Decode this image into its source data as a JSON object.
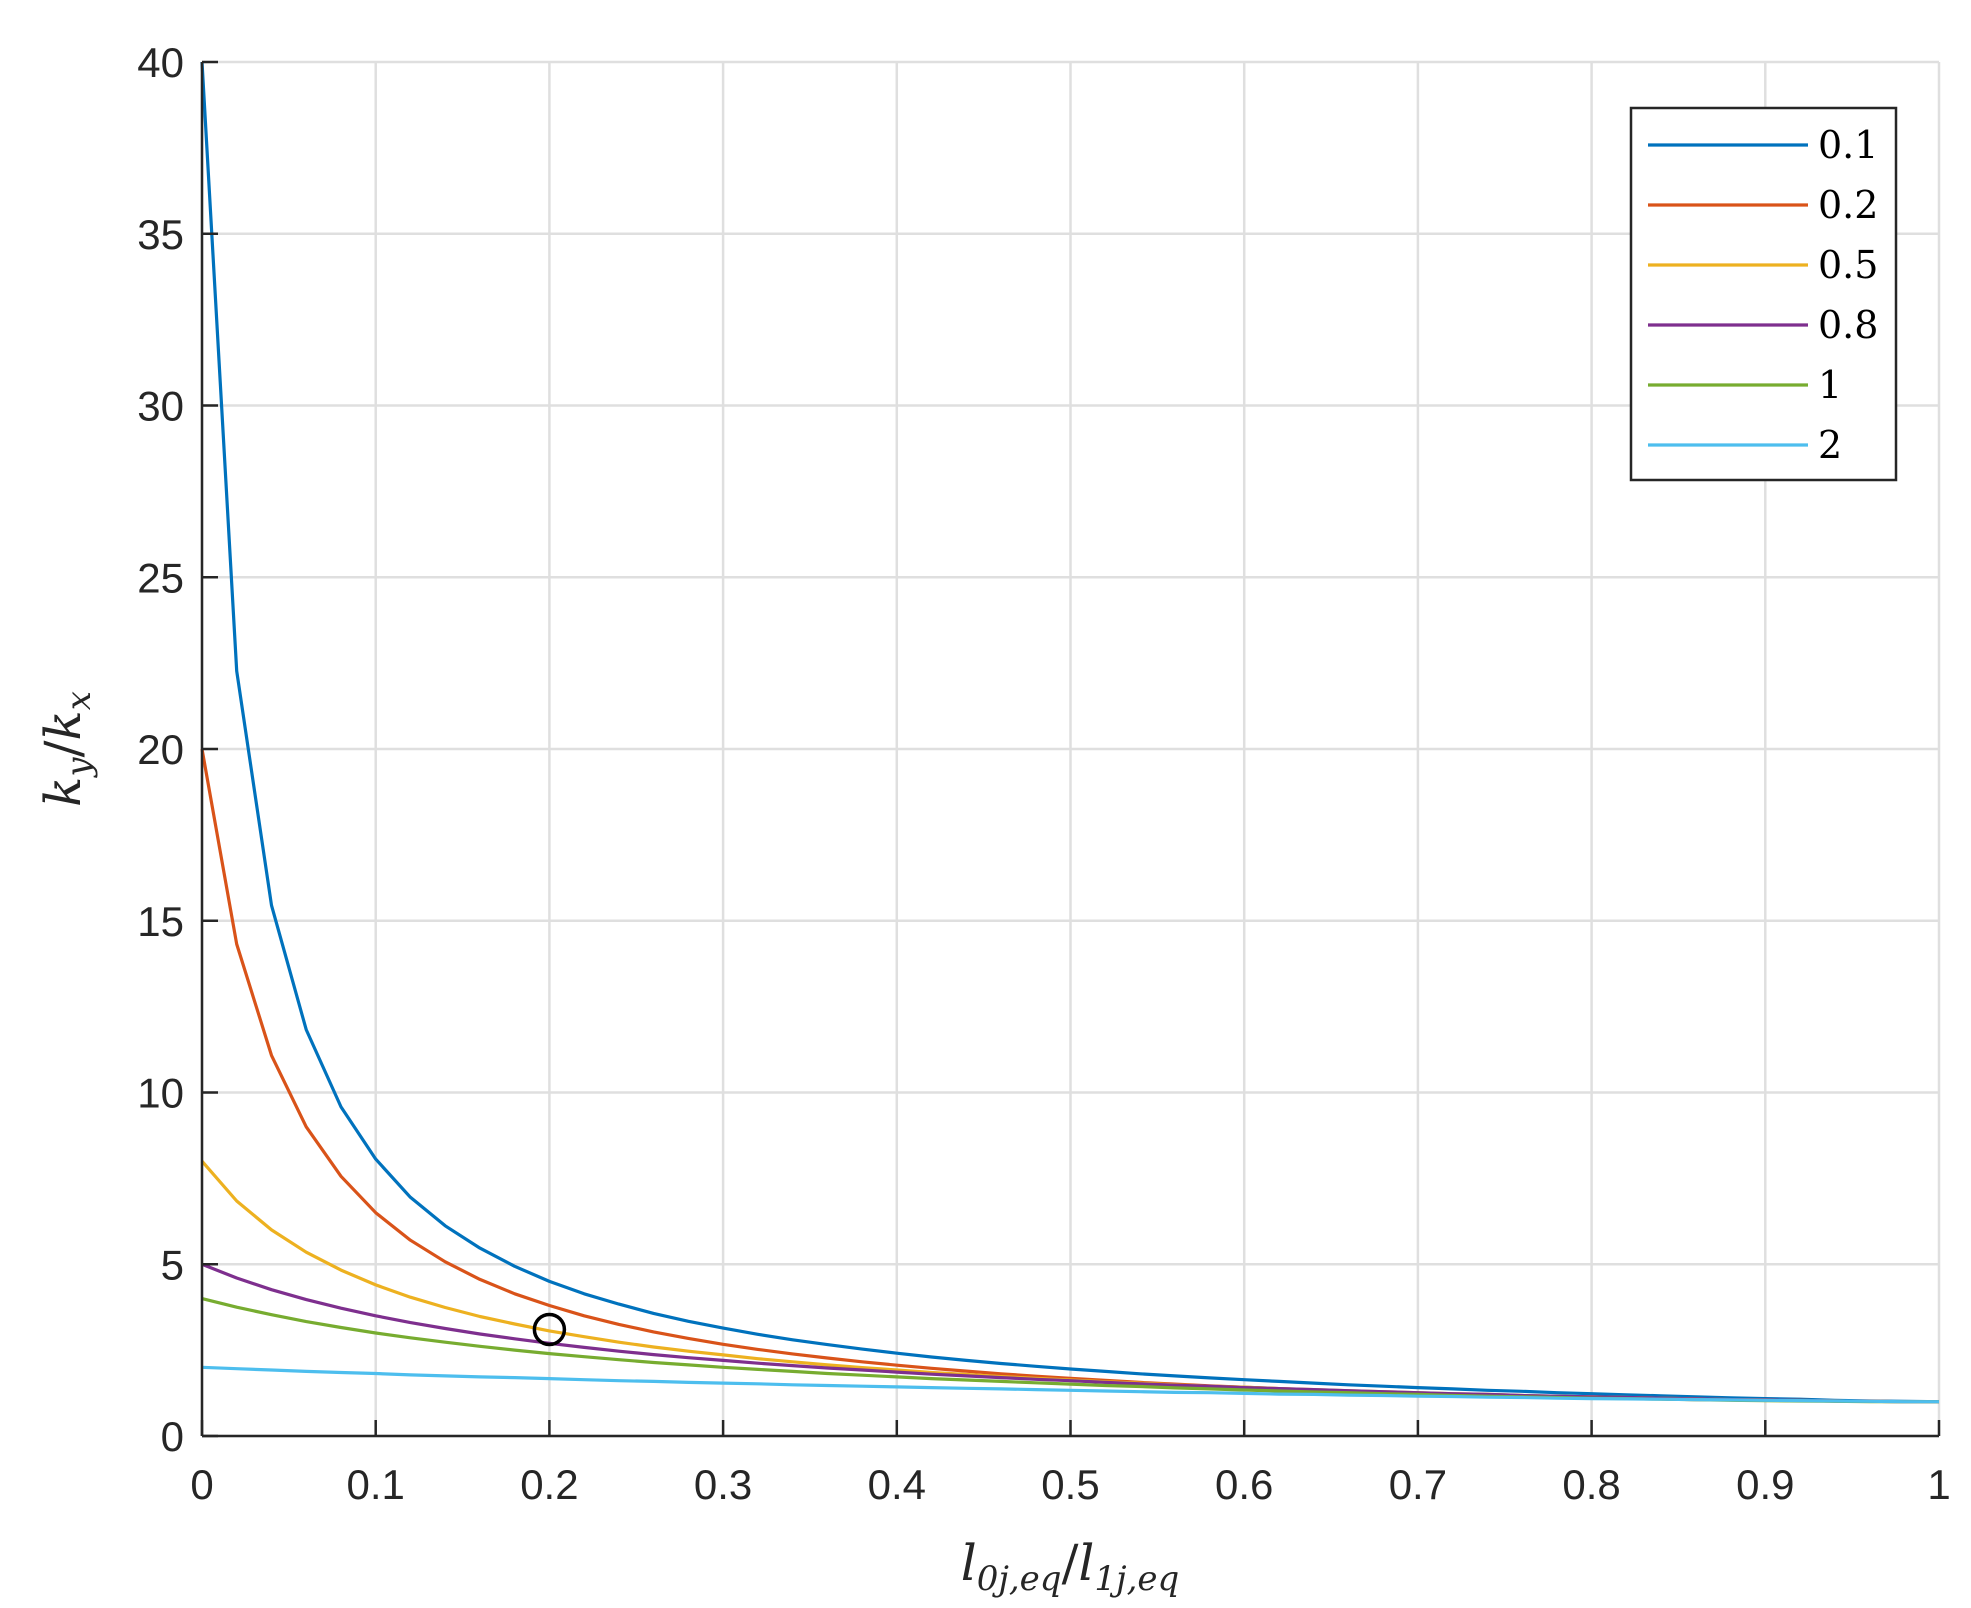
{
  "chart_data": {
    "type": "line",
    "title": "",
    "xlabel": {
      "main1": "l",
      "sub1": "0j,eq",
      "slash": "/",
      "main2": "l",
      "sub2": "1j,eq"
    },
    "ylabel": {
      "main1": "k",
      "sub1": "y",
      "slash": "/",
      "main2": "k",
      "sub2": "x"
    },
    "xlim": [
      0,
      1
    ],
    "ylim": [
      0,
      40
    ],
    "xticks": [
      0,
      0.1,
      0.2,
      0.3,
      0.4,
      0.5,
      0.6,
      0.7,
      0.8,
      0.9,
      1
    ],
    "xtick_labels": [
      "0",
      "0.1",
      "0.2",
      "0.3",
      "0.4",
      "0.5",
      "0.6",
      "0.7",
      "0.8",
      "0.9",
      "1"
    ],
    "yticks": [
      0,
      5,
      10,
      15,
      20,
      25,
      30,
      35,
      40
    ],
    "ytick_labels": [
      "0",
      "5",
      "10",
      "15",
      "20",
      "25",
      "30",
      "35",
      "40"
    ],
    "grid": true,
    "legend_position": "top-right",
    "x": [
      0,
      0.02,
      0.04,
      0.06,
      0.08,
      0.1,
      0.12,
      0.14,
      0.16,
      0.18,
      0.2,
      0.22,
      0.24,
      0.26,
      0.28,
      0.3,
      0.32,
      0.34,
      0.36,
      0.38,
      0.4,
      0.42,
      0.44,
      0.46,
      0.48,
      0.5,
      0.52,
      0.54,
      0.56,
      0.58,
      0.6,
      0.62,
      0.64,
      0.66,
      0.68,
      0.7,
      0.72,
      0.74,
      0.76,
      0.78,
      0.8,
      0.82,
      0.84,
      0.86,
      0.88,
      0.9,
      0.92,
      0.94,
      0.96,
      0.98,
      1
    ],
    "series": [
      {
        "name": "0.1",
        "color": "#0072BD",
        "values": [
          40.0,
          22.27,
          15.45,
          11.83,
          9.58,
          8.06,
          6.95,
          6.12,
          5.47,
          4.94,
          4.5,
          4.14,
          3.84,
          3.57,
          3.34,
          3.14,
          2.96,
          2.8,
          2.66,
          2.53,
          2.41,
          2.3,
          2.2,
          2.11,
          2.03,
          1.95,
          1.88,
          1.81,
          1.75,
          1.69,
          1.64,
          1.59,
          1.54,
          1.49,
          1.45,
          1.41,
          1.37,
          1.33,
          1.3,
          1.26,
          1.23,
          1.2,
          1.17,
          1.14,
          1.11,
          1.09,
          1.07,
          1.04,
          1.02,
          1.01,
          1.0
        ]
      },
      {
        "name": "0.2",
        "color": "#D95319",
        "values": [
          20.0,
          14.32,
          11.08,
          9.0,
          7.56,
          6.5,
          5.7,
          5.07,
          4.56,
          4.14,
          3.8,
          3.5,
          3.25,
          3.03,
          2.84,
          2.67,
          2.52,
          2.39,
          2.27,
          2.16,
          2.06,
          1.97,
          1.89,
          1.81,
          1.74,
          1.68,
          1.62,
          1.56,
          1.51,
          1.46,
          1.42,
          1.38,
          1.34,
          1.31,
          1.27,
          1.24,
          1.21,
          1.18,
          1.16,
          1.14,
          1.12,
          1.1,
          1.08,
          1.06,
          1.05,
          1.04,
          1.03,
          1.02,
          1.01,
          1.0,
          1.0
        ]
      },
      {
        "name": "0.5",
        "color": "#EDB120",
        "values": [
          8.0,
          6.84,
          6.0,
          5.35,
          4.83,
          4.4,
          4.04,
          3.74,
          3.48,
          3.26,
          3.06,
          2.89,
          2.73,
          2.59,
          2.47,
          2.36,
          2.25,
          2.16,
          2.07,
          1.99,
          1.92,
          1.85,
          1.79,
          1.73,
          1.68,
          1.63,
          1.58,
          1.54,
          1.49,
          1.45,
          1.42,
          1.38,
          1.35,
          1.32,
          1.29,
          1.26,
          1.23,
          1.21,
          1.18,
          1.16,
          1.14,
          1.12,
          1.1,
          1.08,
          1.06,
          1.05,
          1.04,
          1.02,
          1.01,
          1.0,
          1.0
        ]
      },
      {
        "name": "0.8",
        "color": "#7E2F8E",
        "values": [
          5.0,
          4.6,
          4.26,
          3.97,
          3.72,
          3.5,
          3.3,
          3.13,
          2.97,
          2.83,
          2.7,
          2.58,
          2.47,
          2.37,
          2.28,
          2.2,
          2.12,
          2.05,
          1.98,
          1.92,
          1.86,
          1.8,
          1.75,
          1.7,
          1.65,
          1.61,
          1.56,
          1.52,
          1.48,
          1.45,
          1.41,
          1.38,
          1.35,
          1.32,
          1.29,
          1.26,
          1.23,
          1.21,
          1.18,
          1.16,
          1.14,
          1.12,
          1.1,
          1.08,
          1.06,
          1.05,
          1.04,
          1.02,
          1.01,
          1.0,
          1.0
        ]
      },
      {
        "name": "1",
        "color": "#77AC30",
        "values": [
          4.0,
          3.75,
          3.53,
          3.33,
          3.16,
          3.0,
          2.86,
          2.73,
          2.61,
          2.5,
          2.4,
          2.31,
          2.22,
          2.14,
          2.07,
          2.0,
          1.94,
          1.88,
          1.82,
          1.77,
          1.72,
          1.67,
          1.63,
          1.59,
          1.55,
          1.51,
          1.47,
          1.44,
          1.4,
          1.37,
          1.34,
          1.31,
          1.28,
          1.26,
          1.23,
          1.21,
          1.18,
          1.16,
          1.14,
          1.12,
          1.1,
          1.09,
          1.07,
          1.06,
          1.04,
          1.03,
          1.02,
          1.01,
          1.0,
          1.0,
          1.0
        ]
      },
      {
        "name": "2",
        "color": "#4DBEEE",
        "values": [
          2.0,
          1.96,
          1.92,
          1.88,
          1.85,
          1.82,
          1.78,
          1.75,
          1.72,
          1.7,
          1.67,
          1.64,
          1.61,
          1.59,
          1.56,
          1.54,
          1.52,
          1.49,
          1.47,
          1.45,
          1.43,
          1.41,
          1.39,
          1.37,
          1.35,
          1.33,
          1.31,
          1.29,
          1.27,
          1.26,
          1.24,
          1.22,
          1.21,
          1.19,
          1.18,
          1.16,
          1.15,
          1.13,
          1.12,
          1.1,
          1.09,
          1.08,
          1.07,
          1.06,
          1.05,
          1.04,
          1.03,
          1.02,
          1.01,
          1.0,
          1.0
        ]
      }
    ],
    "annotations": [
      {
        "type": "circle-marker",
        "x": 0.2,
        "y": 3.1,
        "color": "#000000"
      }
    ]
  }
}
